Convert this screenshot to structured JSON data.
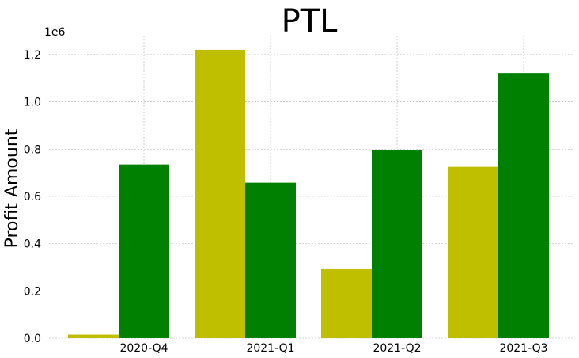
{
  "chart_data": {
    "type": "bar",
    "title": "PTL",
    "xlabel": "",
    "ylabel": "Profit Amount",
    "y_offset_label": "1e6",
    "y_scale": 1000000,
    "categories": [
      "2020-Q4",
      "2021-Q1",
      "2021-Q2",
      "2021-Q3"
    ],
    "series": [
      {
        "color": "#bfbf00",
        "values": [
          15000,
          1220000,
          295000,
          725000
        ]
      },
      {
        "color": "#008000",
        "values": [
          735000,
          658000,
          797000,
          1122000
        ]
      }
    ],
    "ylim": [
      0,
      1280000
    ],
    "yticks": [
      0,
      200000,
      400000,
      600000,
      800000,
      1000000,
      1200000
    ],
    "ytick_labels": [
      "0.0",
      "0.2",
      "0.4",
      "0.6",
      "0.8",
      "1.0",
      "1.2"
    ],
    "grid": true,
    "legend": "none"
  }
}
